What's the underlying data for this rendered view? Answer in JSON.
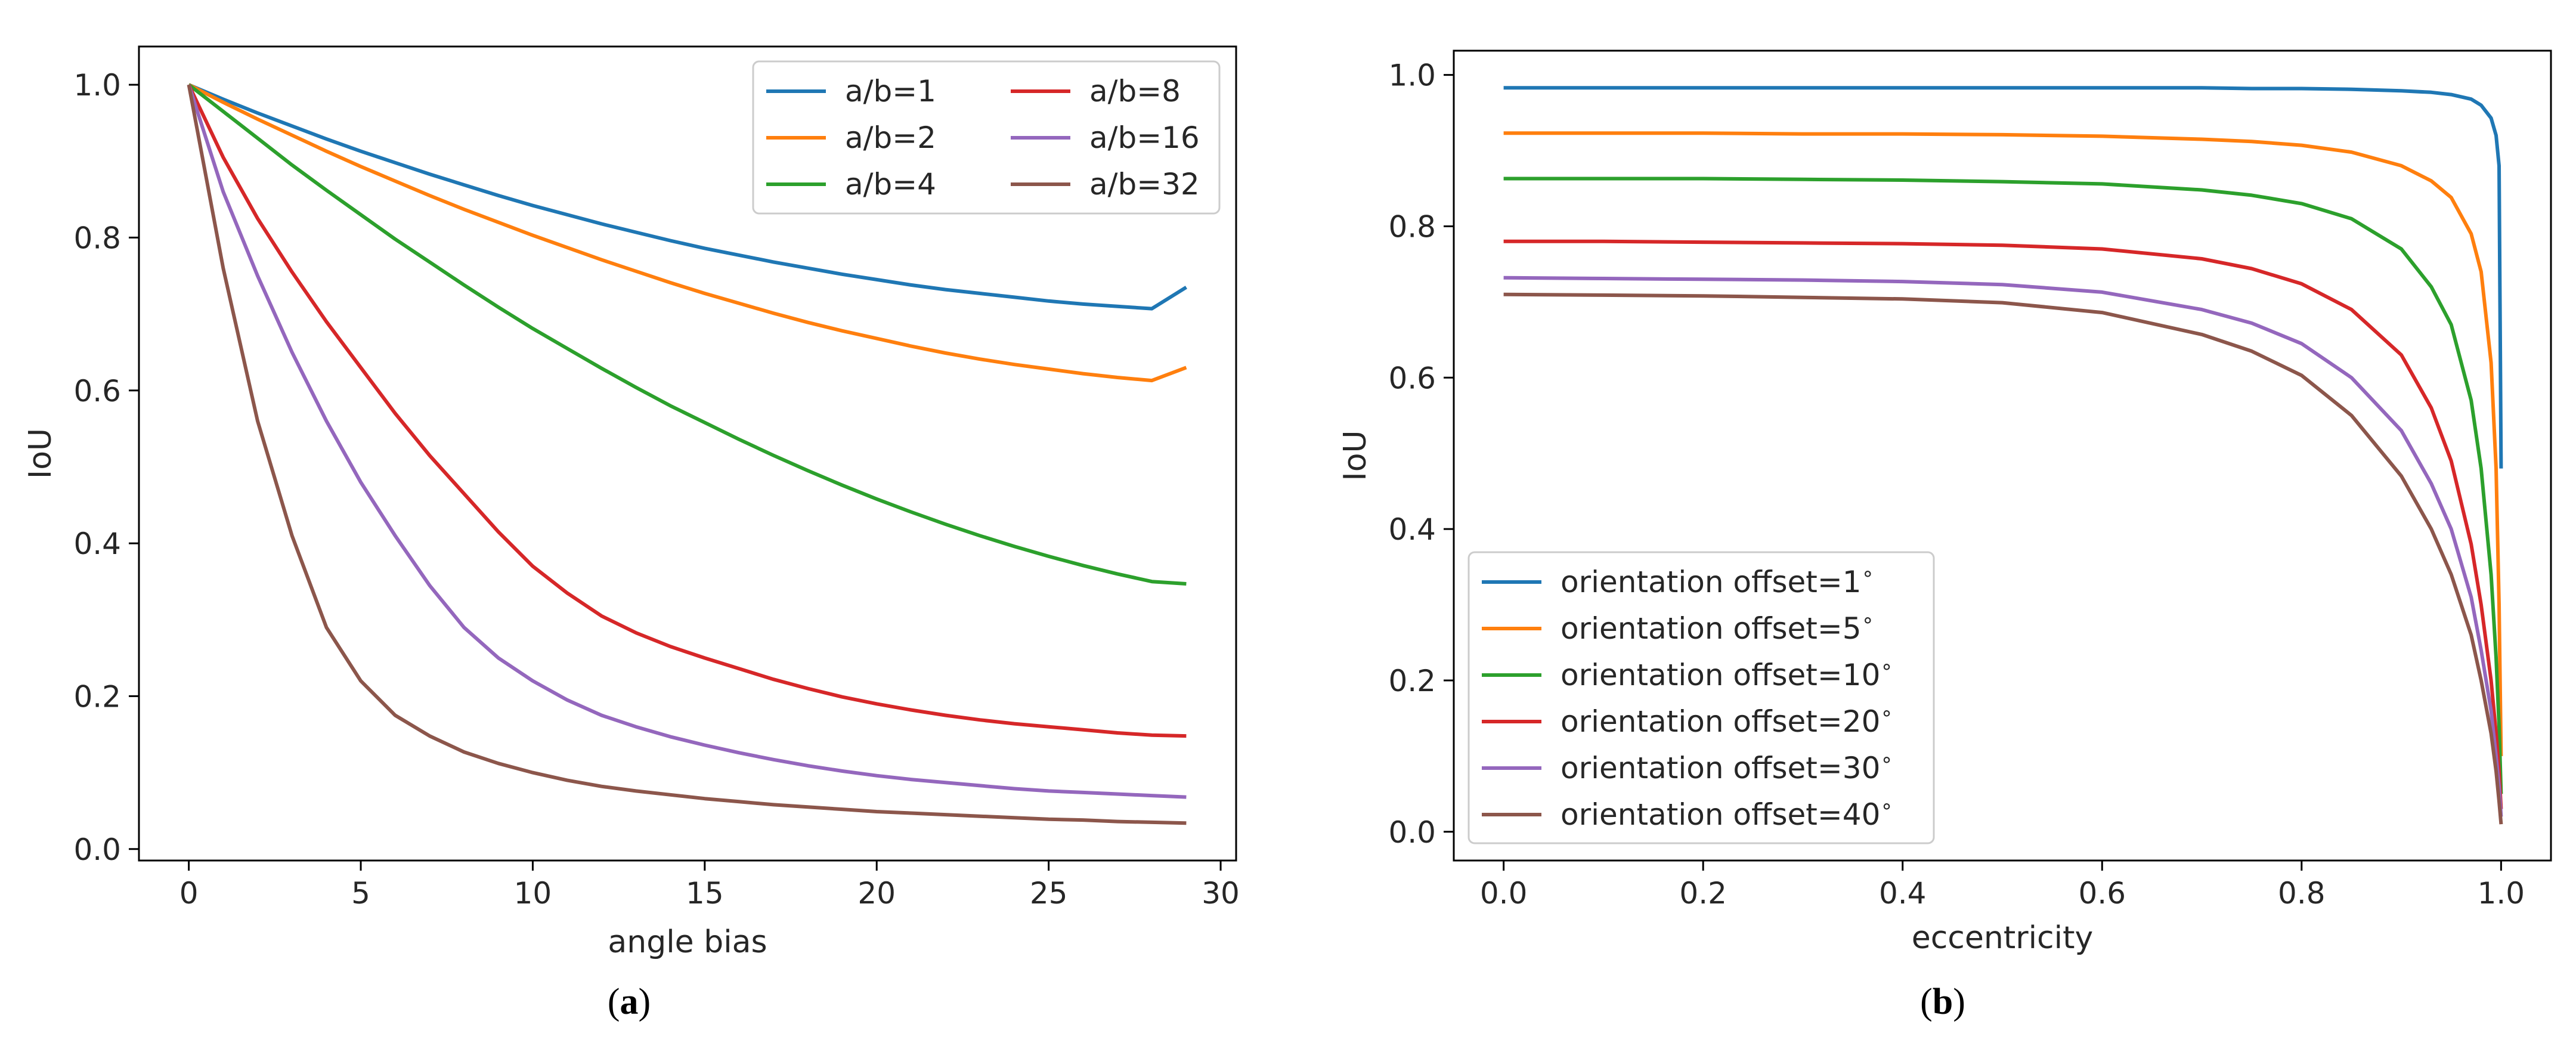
{
  "chart_data": [
    {
      "type": "line",
      "xlabel": "angle bias",
      "ylabel": "IoU",
      "caption": "(a)",
      "xlim": [
        -1.45,
        30.45
      ],
      "ylim": [
        -0.015,
        1.05
      ],
      "xticks": [
        0,
        5,
        10,
        15,
        20,
        25,
        30
      ],
      "yticks": [
        0.0,
        0.2,
        0.4,
        0.6,
        0.8,
        1.0
      ],
      "xtick_labels": [
        "0",
        "5",
        "10",
        "15",
        "20",
        "25",
        "30"
      ],
      "ytick_labels": [
        "0.0",
        "0.2",
        "0.4",
        "0.6",
        "0.8",
        "1.0"
      ],
      "legend_position": "top-right",
      "legend_columns": 2,
      "x": [
        0,
        1,
        2,
        3,
        4,
        5,
        6,
        7,
        8,
        9,
        10,
        11,
        12,
        13,
        14,
        15,
        16,
        17,
        18,
        19,
        20,
        21,
        22,
        23,
        24,
        25,
        26,
        27,
        28,
        29
      ],
      "series": [
        {
          "name": "a/b=1",
          "color": "#1f77b4",
          "values": [
            1.0,
            0.981,
            0.963,
            0.946,
            0.929,
            0.913,
            0.898,
            0.883,
            0.869,
            0.855,
            0.842,
            0.83,
            0.818,
            0.807,
            0.796,
            0.786,
            0.777,
            0.768,
            0.76,
            0.752,
            0.745,
            0.738,
            0.732,
            0.727,
            0.722,
            0.717,
            0.713,
            0.71,
            0.707,
            0.735
          ]
        },
        {
          "name": "a/b=2",
          "color": "#ff7f0e",
          "values": [
            1.0,
            0.977,
            0.955,
            0.934,
            0.913,
            0.893,
            0.874,
            0.855,
            0.837,
            0.82,
            0.803,
            0.787,
            0.771,
            0.756,
            0.741,
            0.727,
            0.714,
            0.701,
            0.689,
            0.678,
            0.668,
            0.658,
            0.649,
            0.641,
            0.634,
            0.628,
            0.622,
            0.617,
            0.613,
            0.63
          ]
        },
        {
          "name": "a/b=4",
          "color": "#2ca02c",
          "values": [
            1.0,
            0.965,
            0.93,
            0.895,
            0.862,
            0.83,
            0.798,
            0.768,
            0.738,
            0.709,
            0.681,
            0.655,
            0.629,
            0.604,
            0.58,
            0.558,
            0.536,
            0.515,
            0.495,
            0.476,
            0.458,
            0.441,
            0.425,
            0.41,
            0.396,
            0.383,
            0.371,
            0.36,
            0.35,
            0.347
          ]
        },
        {
          "name": "a/b=8",
          "color": "#d62728",
          "values": [
            1.0,
            0.905,
            0.825,
            0.755,
            0.69,
            0.63,
            0.57,
            0.515,
            0.465,
            0.415,
            0.37,
            0.335,
            0.305,
            0.283,
            0.265,
            0.25,
            0.236,
            0.222,
            0.21,
            0.199,
            0.19,
            0.182,
            0.175,
            0.169,
            0.164,
            0.16,
            0.156,
            0.152,
            0.149,
            0.148
          ]
        },
        {
          "name": "a/b=16",
          "color": "#9467bd",
          "values": [
            1.0,
            0.86,
            0.75,
            0.65,
            0.56,
            0.48,
            0.41,
            0.345,
            0.29,
            0.25,
            0.22,
            0.195,
            0.175,
            0.16,
            0.147,
            0.136,
            0.126,
            0.117,
            0.109,
            0.102,
            0.096,
            0.091,
            0.087,
            0.083,
            0.079,
            0.076,
            0.074,
            0.072,
            0.07,
            0.068
          ]
        },
        {
          "name": "a/b=32",
          "color": "#8c564b",
          "values": [
            1.0,
            0.76,
            0.56,
            0.41,
            0.29,
            0.22,
            0.175,
            0.148,
            0.127,
            0.112,
            0.1,
            0.09,
            0.082,
            0.076,
            0.071,
            0.066,
            0.062,
            0.058,
            0.055,
            0.052,
            0.049,
            0.047,
            0.045,
            0.043,
            0.041,
            0.039,
            0.038,
            0.036,
            0.035,
            0.034
          ]
        }
      ]
    },
    {
      "type": "line",
      "xlabel": "eccentricity",
      "ylabel": "IoU",
      "caption": "(b)",
      "xlim": [
        -0.05,
        1.05
      ],
      "ylim": [
        -0.038,
        1.032
      ],
      "xticks": [
        0.0,
        0.2,
        0.4,
        0.6,
        0.8,
        1.0
      ],
      "yticks": [
        0.0,
        0.2,
        0.4,
        0.6,
        0.8,
        1.0
      ],
      "xtick_labels": [
        "0.0",
        "0.2",
        "0.4",
        "0.6",
        "0.8",
        "1.0"
      ],
      "ytick_labels": [
        "0.0",
        "0.2",
        "0.4",
        "0.6",
        "0.8",
        "1.0"
      ],
      "legend_position": "lower-left",
      "legend_columns": 1,
      "x": [
        0.0,
        0.1,
        0.2,
        0.3,
        0.4,
        0.5,
        0.6,
        0.7,
        0.75,
        0.8,
        0.85,
        0.9,
        0.93,
        0.95,
        0.97,
        0.98,
        0.99,
        0.995,
        0.998,
        1.0
      ],
      "series": [
        {
          "name": "orientation offset=1$^\\circ$",
          "color": "#1f77b4",
          "values": [
            0.983,
            0.983,
            0.983,
            0.983,
            0.983,
            0.983,
            0.983,
            0.983,
            0.982,
            0.982,
            0.981,
            0.979,
            0.977,
            0.974,
            0.968,
            0.96,
            0.943,
            0.92,
            0.88,
            0.48
          ]
        },
        {
          "name": "orientation offset=5$^\\circ$",
          "color": "#ff7f0e",
          "values": [
            0.923,
            0.923,
            0.923,
            0.922,
            0.922,
            0.921,
            0.919,
            0.915,
            0.912,
            0.907,
            0.898,
            0.88,
            0.86,
            0.838,
            0.79,
            0.74,
            0.62,
            0.48,
            0.3,
            0.1
          ]
        },
        {
          "name": "orientation offset=10$^\\circ$",
          "color": "#2ca02c",
          "values": [
            0.863,
            0.863,
            0.863,
            0.862,
            0.861,
            0.859,
            0.856,
            0.848,
            0.841,
            0.83,
            0.81,
            0.77,
            0.72,
            0.67,
            0.57,
            0.48,
            0.34,
            0.23,
            0.14,
            0.05
          ]
        },
        {
          "name": "orientation offset=20$^\\circ$",
          "color": "#d62728",
          "values": [
            0.78,
            0.78,
            0.779,
            0.778,
            0.777,
            0.775,
            0.77,
            0.757,
            0.744,
            0.724,
            0.69,
            0.63,
            0.56,
            0.49,
            0.38,
            0.3,
            0.2,
            0.13,
            0.08,
            0.03
          ]
        },
        {
          "name": "orientation offset=30$^\\circ$",
          "color": "#9467bd",
          "values": [
            0.732,
            0.731,
            0.73,
            0.729,
            0.727,
            0.723,
            0.713,
            0.69,
            0.672,
            0.645,
            0.6,
            0.53,
            0.46,
            0.4,
            0.31,
            0.24,
            0.16,
            0.1,
            0.06,
            0.02
          ]
        },
        {
          "name": "orientation offset=40$^\\circ$",
          "color": "#8c564b",
          "values": [
            0.71,
            0.709,
            0.708,
            0.706,
            0.704,
            0.699,
            0.686,
            0.657,
            0.635,
            0.603,
            0.55,
            0.47,
            0.4,
            0.34,
            0.26,
            0.2,
            0.13,
            0.08,
            0.04,
            0.01
          ]
        }
      ]
    }
  ]
}
